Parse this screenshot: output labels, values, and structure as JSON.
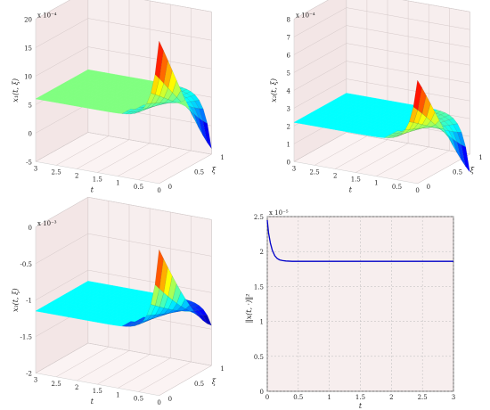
{
  "chart_data": [
    {
      "type": "surface",
      "zlabel": "x₁(t, ξ)",
      "xlabel": "t",
      "ylabel": "ξ",
      "zscale": "x 10⁻⁴",
      "t_ticks": [
        "3",
        "2.5",
        "2",
        "1.5",
        "1",
        "0.5",
        "0"
      ],
      "xi_ticks": [
        "0",
        "0.5",
        "1"
      ],
      "z_ticks": [
        "-5",
        "0",
        "5",
        "10",
        "15",
        "20"
      ],
      "zlim": [
        -5,
        20
      ],
      "plateau_value": 6,
      "boundary_peak": 20,
      "boundary_min": -4,
      "plateau_color": "#80ff80"
    },
    {
      "type": "surface",
      "zlabel": "x₂(t, ξ)",
      "xlabel": "t",
      "ylabel": "ξ",
      "zscale": "x 10⁻⁴",
      "t_ticks": [
        "3",
        "2.5",
        "2",
        "1.5",
        "1",
        "0.5",
        "0"
      ],
      "xi_ticks": [
        "0",
        "0.5",
        "1"
      ],
      "z_ticks": [
        "0",
        "1",
        "2",
        "3",
        "4",
        "5",
        "6",
        "7",
        "8"
      ],
      "zlim": [
        0,
        8
      ],
      "plateau_value": 2.2,
      "boundary_peak": 5.8,
      "boundary_min": -1,
      "plateau_color": "#00ffff"
    },
    {
      "type": "surface",
      "zlabel": "x₃(t, ξ)",
      "xlabel": "t",
      "ylabel": "ξ",
      "zscale": "x 10⁻³",
      "t_ticks": [
        "3",
        "2.5",
        "2",
        "1.5",
        "1",
        "0.5",
        "0"
      ],
      "xi_ticks": [
        "0",
        "0.5",
        "1"
      ],
      "z_ticks": [
        "-2",
        "-1.5",
        "-1",
        "-0.5",
        "0"
      ],
      "zlim": [
        -2,
        0
      ],
      "plateau_value": -1.15,
      "boundary_peak": 0,
      "boundary_min": -1.45,
      "plateau_color": "#00ffff"
    },
    {
      "type": "line",
      "xlabel": "t",
      "ylabel": "‖x(t, ·)‖²",
      "yscale": "x 10⁻⁵",
      "xlim": [
        0,
        3
      ],
      "ylim": [
        0,
        2.5
      ],
      "x_ticks": [
        "0",
        "0.5",
        "1",
        "1.5",
        "2",
        "2.5",
        "3"
      ],
      "y_ticks": [
        "0",
        "0.5",
        "1",
        "1.5",
        "2",
        "2.5"
      ],
      "grid": "on",
      "line_color": "#0000c8",
      "series": [
        {
          "x": [
            0,
            0.02,
            0.05,
            0.08,
            0.12,
            0.16,
            0.2,
            0.25,
            0.3,
            0.4,
            0.5,
            1,
            1.5,
            2,
            2.5,
            3
          ],
          "y": [
            2.45,
            2.27,
            2.12,
            2.02,
            1.94,
            1.9,
            1.88,
            1.87,
            1.865,
            1.86,
            1.86,
            1.86,
            1.86,
            1.86,
            1.86,
            1.86
          ]
        }
      ]
    }
  ]
}
